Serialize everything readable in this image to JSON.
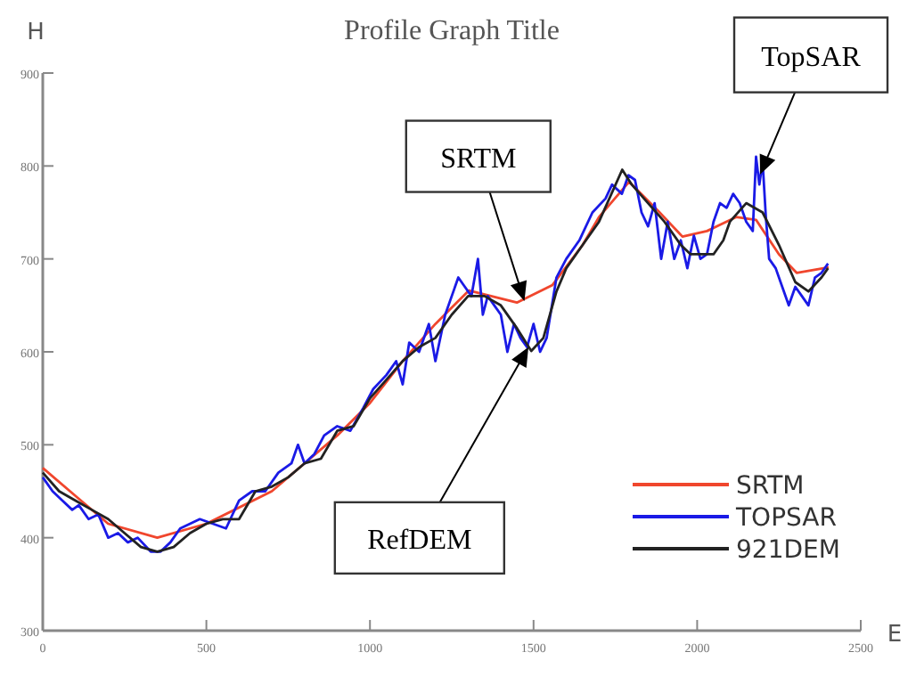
{
  "chart_data": {
    "type": "line",
    "title": "Profile Graph Title",
    "xlabel": "E",
    "ylabel": "H",
    "xlim": [
      0,
      2500
    ],
    "ylim": [
      300,
      900
    ],
    "xticks": [
      0,
      500,
      1000,
      1500,
      2000,
      2500
    ],
    "yticks": [
      300,
      400,
      500,
      600,
      700,
      800,
      900
    ],
    "grid": false,
    "legend": "bottom right",
    "line_style": "solid",
    "marker": "none",
    "annotations": [
      {
        "text": "SRTM",
        "x": 1470,
        "y": 657
      },
      {
        "text": "TopSAR",
        "x": 2195,
        "y": 793
      },
      {
        "text": "RefDEM",
        "x": 1481,
        "y": 603
      }
    ],
    "series": [
      {
        "name": "SRTM",
        "color": "#f0462d",
        "x": [
          0,
          100,
          200,
          350,
          500,
          700,
          900,
          1000,
          1100,
          1200,
          1302,
          1449,
          1558,
          1650,
          1700,
          1792,
          1880,
          1955,
          2030,
          2119,
          2180,
          2250,
          2304,
          2402
        ],
        "values": [
          475,
          445,
          415,
          400,
          415,
          450,
          510,
          545,
          590,
          630,
          666,
          653,
          672,
          715,
          745,
          783,
          752,
          724,
          730,
          745,
          742,
          705,
          685,
          691
        ]
      },
      {
        "name": "TOPSAR",
        "color": "#1a1ae6",
        "x": [
          0,
          30,
          60,
          90,
          110,
          140,
          170,
          200,
          230,
          260,
          290,
          330,
          360,
          390,
          420,
          450,
          480,
          520,
          560,
          600,
          640,
          680,
          720,
          760,
          780,
          800,
          830,
          860,
          900,
          940,
          980,
          1010,
          1050,
          1080,
          1100,
          1120,
          1150,
          1180,
          1200,
          1230,
          1250,
          1270,
          1290,
          1310,
          1330,
          1345,
          1360,
          1380,
          1400,
          1420,
          1440,
          1460,
          1480,
          1500,
          1520,
          1540,
          1570,
          1600,
          1640,
          1680,
          1720,
          1740,
          1770,
          1790,
          1810,
          1830,
          1850,
          1870,
          1890,
          1910,
          1930,
          1950,
          1970,
          1990,
          2010,
          2030,
          2050,
          2070,
          2090,
          2110,
          2130,
          2150,
          2170,
          2180,
          2190,
          2200,
          2210,
          2220,
          2240,
          2260,
          2280,
          2300,
          2320,
          2340,
          2360,
          2380,
          2400
        ],
        "values": [
          465,
          450,
          440,
          430,
          435,
          420,
          425,
          400,
          405,
          395,
          400,
          385,
          385,
          395,
          410,
          415,
          420,
          415,
          410,
          440,
          450,
          450,
          470,
          480,
          500,
          480,
          490,
          510,
          520,
          515,
          540,
          560,
          575,
          590,
          565,
          610,
          600,
          630,
          590,
          640,
          660,
          680,
          670,
          660,
          700,
          640,
          660,
          650,
          640,
          600,
          630,
          615,
          605,
          630,
          600,
          615,
          680,
          700,
          720,
          750,
          765,
          780,
          770,
          790,
          785,
          750,
          735,
          760,
          700,
          740,
          700,
          720,
          690,
          725,
          700,
          705,
          740,
          760,
          755,
          770,
          760,
          740,
          730,
          810,
          780,
          805,
          745,
          700,
          690,
          670,
          650,
          670,
          660,
          650,
          680,
          685,
          695
        ]
      },
      {
        "name": "921DEM",
        "color": "#222222",
        "x": [
          0,
          50,
          100,
          150,
          200,
          250,
          300,
          350,
          400,
          450,
          500,
          550,
          600,
          650,
          700,
          750,
          800,
          850,
          900,
          950,
          1000,
          1050,
          1100,
          1150,
          1200,
          1250,
          1300,
          1350,
          1400,
          1450,
          1493,
          1530,
          1570,
          1600,
          1650,
          1700,
          1771,
          1800,
          1850,
          1900,
          1950,
          1980,
          2050,
          2080,
          2100,
          2150,
          2200,
          2250,
          2300,
          2340,
          2380,
          2400
        ],
        "values": [
          470,
          450,
          440,
          430,
          420,
          405,
          390,
          385,
          390,
          405,
          415,
          420,
          420,
          450,
          455,
          465,
          480,
          485,
          515,
          520,
          550,
          570,
          590,
          605,
          615,
          640,
          660,
          660,
          650,
          625,
          601,
          615,
          665,
          690,
          715,
          740,
          796,
          780,
          760,
          740,
          715,
          705,
          705,
          720,
          740,
          760,
          750,
          715,
          675,
          665,
          680,
          690
        ]
      }
    ]
  }
}
